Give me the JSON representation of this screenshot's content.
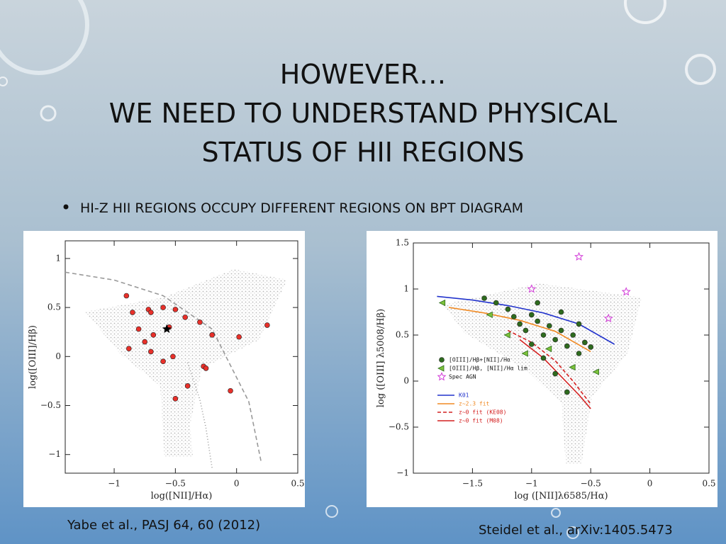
{
  "slide": {
    "title": [
      "HOWEVER…",
      "WE NEED TO UNDERSTAND PHYSICAL",
      "STATUS OF HII REGIONS"
    ],
    "bullet": "HI-Z HII REGIONS OCCUPY DIFFERENT REGIONS ON BPT DIAGRAM"
  },
  "chart_data": [
    {
      "type": "scatter",
      "caption": "Yabe et al., PASJ 64, 60 (2012)",
      "xlabel": "log([NII]/Hα)",
      "ylabel": "log([OIII]/Hβ)",
      "xlim": [
        -1.4,
        0.5
      ],
      "ylim": [
        -1.19,
        1.18
      ],
      "xticks": [
        {
          "value": -1,
          "label": "−1"
        },
        {
          "value": -0.5,
          "label": "−0.5"
        },
        0,
        0.5
      ],
      "yticks": [
        1,
        0.5,
        0,
        {
          "value": -0.5,
          "label": "−0.5"
        },
        {
          "value": -1,
          "label": "−1"
        }
      ],
      "lines": [
        {
          "color": "#999999",
          "dash": "6,4",
          "x": [
            -1.4,
            -1.0,
            -0.6,
            -0.2,
            0.1,
            0.2
          ],
          "y": [
            0.86,
            0.78,
            0.62,
            0.28,
            -0.46,
            -1.07
          ]
        },
        {
          "color": "#999999",
          "dash": "1,3",
          "x": [
            -0.4,
            -0.3,
            -0.25,
            -0.2
          ],
          "y": [
            -0.06,
            -0.44,
            -0.73,
            -1.14
          ]
        }
      ],
      "series": [
        {
          "color": "#e8302a",
          "marker": "circle",
          "x": [
            -0.9,
            -0.85,
            -0.72,
            -0.7,
            -0.6,
            -0.5,
            -0.42,
            -0.8,
            -0.75,
            -0.68,
            -0.55,
            -0.3,
            -0.2,
            0.02,
            0.25,
            -0.88,
            -0.7,
            -0.6,
            -0.52,
            -0.27,
            -0.25,
            -0.05,
            -0.5,
            -0.4
          ],
          "y": [
            0.62,
            0.45,
            0.48,
            0.45,
            0.5,
            0.48,
            0.4,
            0.28,
            0.15,
            0.22,
            0.3,
            0.35,
            0.22,
            0.2,
            0.32,
            0.08,
            0.05,
            -0.05,
            0.0,
            -0.1,
            -0.12,
            -0.35,
            -0.43,
            -0.3
          ]
        },
        {
          "color": "#000000",
          "marker": "star",
          "x": [
            -0.57
          ],
          "y": [
            0.28
          ]
        }
      ]
    },
    {
      "type": "scatter",
      "caption": "Steidel et al., arXiv:1405.5473",
      "xlabel": "log ([NII]λ6585/Hα)",
      "ylabel": "log ([OIII] λ5008/Hβ)",
      "xlim": [
        -2,
        0.5
      ],
      "ylim": [
        -1,
        1.5
      ],
      "legend": "lower left",
      "xticks": [
        {
          "value": -1.5,
          "label": "−1.5"
        },
        {
          "value": -1,
          "label": "−1"
        },
        {
          "value": -0.5,
          "label": "−0.5"
        },
        0,
        0.5
      ],
      "yticks": [
        1.5,
        1,
        0.5,
        0,
        {
          "value": -0.5,
          "label": "−0.5"
        },
        {
          "value": -1,
          "label": "−1"
        }
      ],
      "series": [
        {
          "name": "[OIII]/Hβ+[NII]/Hα",
          "color": "#2e6b1e",
          "marker": "circle",
          "x": [
            -1.3,
            -1.2,
            -1.15,
            -1.1,
            -1.05,
            -1.0,
            -0.95,
            -0.9,
            -0.85,
            -0.8,
            -0.75,
            -0.7,
            -0.65,
            -0.6,
            -1.0,
            -0.9,
            -0.8,
            -0.7,
            -0.55,
            -0.5,
            -1.4,
            -0.95,
            -0.75,
            -0.6
          ],
          "y": [
            0.85,
            0.78,
            0.7,
            0.62,
            0.55,
            0.72,
            0.65,
            0.5,
            0.6,
            0.45,
            0.55,
            0.38,
            0.5,
            0.3,
            0.4,
            0.25,
            0.08,
            -0.12,
            0.42,
            0.37,
            0.9,
            0.85,
            0.75,
            0.62
          ]
        },
        {
          "name": "[OIII]/Hβ, [NII]/Hα lim",
          "color": "#7cc23a",
          "marker": "triangle",
          "x": [
            -1.75,
            -1.35,
            -1.2,
            -1.05,
            -0.85,
            -0.65,
            -0.45
          ],
          "y": [
            0.85,
            0.72,
            0.5,
            0.3,
            0.35,
            0.15,
            0.1
          ]
        },
        {
          "name": "Spec AGN",
          "color": "#d23cd8",
          "marker": "star",
          "x": [
            -0.6,
            -1.0,
            -0.2,
            -0.35
          ],
          "y": [
            1.35,
            1.0,
            0.97,
            0.68
          ]
        }
      ],
      "lines": [
        {
          "name": "K01",
          "color": "#2233cc",
          "dash": "",
          "x": [
            -1.8,
            -1.5,
            -1.2,
            -0.9,
            -0.6,
            -0.3
          ],
          "y": [
            0.92,
            0.88,
            0.82,
            0.74,
            0.62,
            0.4
          ]
        },
        {
          "name": "z~2.3 fit",
          "color": "#f08a24",
          "dash": "",
          "x": [
            -1.7,
            -1.4,
            -1.1,
            -0.8,
            -0.5
          ],
          "y": [
            0.8,
            0.74,
            0.66,
            0.54,
            0.32
          ]
        },
        {
          "name": "z~0 fit (KE08)",
          "color": "#d42020",
          "dash": "5,3",
          "x": [
            -1.2,
            -1.0,
            -0.8,
            -0.65,
            -0.5
          ],
          "y": [
            0.55,
            0.42,
            0.22,
            0.0,
            -0.25
          ]
        },
        {
          "name": "z~0 fit (M08)",
          "color": "#d42020",
          "dash": "",
          "x": [
            -1.1,
            -0.9,
            -0.75,
            -0.6,
            -0.5
          ],
          "y": [
            0.45,
            0.25,
            0.05,
            -0.15,
            -0.3
          ]
        }
      ]
    }
  ]
}
